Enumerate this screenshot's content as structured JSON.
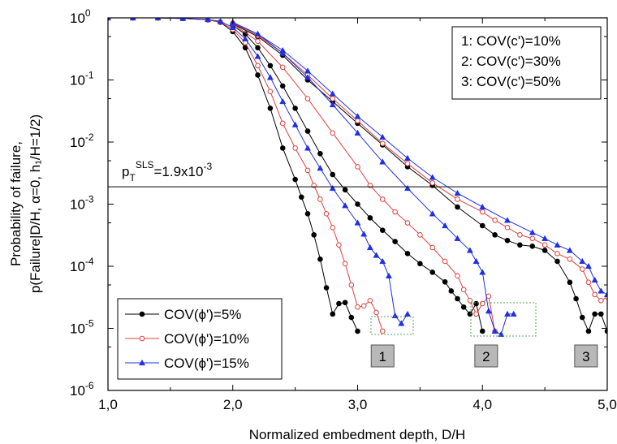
{
  "chart_data": {
    "type": "line",
    "xlabel": "Normalized embedment depth, D/H",
    "ylabel_line1": "Probability of failure,",
    "ylabel_line2": "p(Failure|D/H, α=0, h₁/H=1/2)",
    "x_ticks": [
      "1,0",
      "2,0",
      "3,0",
      "4,0",
      "5,0"
    ],
    "xlim": [
      1.0,
      5.0
    ],
    "y_scale": "log",
    "ylim": [
      1e-06,
      1
    ],
    "y_ticks": [
      {
        "base": "10",
        "exp": "0"
      },
      {
        "base": "10",
        "exp": "-1"
      },
      {
        "base": "10",
        "exp": "-2"
      },
      {
        "base": "10",
        "exp": "-3"
      },
      {
        "base": "10",
        "exp": "-4"
      },
      {
        "base": "10",
        "exp": "-5"
      },
      {
        "base": "10",
        "exp": "-6"
      }
    ],
    "threshold": {
      "value": 0.0019,
      "label_p": "p",
      "label_sub": "T",
      "label_sup": "SLS",
      "label_value": "=1.9x10",
      "label_exp": "-3"
    },
    "cov_c_legend": [
      "1: COV(c')=10%",
      "2: COV(c')=30%",
      "3: COV(c')=50%"
    ],
    "group_labels": [
      {
        "label": "1",
        "x": 3.2
      },
      {
        "label": "2",
        "x": 4.03
      },
      {
        "label": "3",
        "x": 4.83
      }
    ],
    "series": [
      {
        "name": "COV(ϕ')=5%",
        "color": "#000000",
        "marker": "circle-filled",
        "groups": [
          {
            "x": [
              1.0,
              1.2,
              1.4,
              1.6,
              1.8,
              1.9,
              2.0,
              2.1,
              2.2,
              2.3,
              2.4,
              2.5,
              2.55,
              2.6,
              2.65,
              2.7,
              2.75,
              2.8,
              2.85,
              2.9,
              2.95,
              3.0
            ],
            "y": [
              1.0,
              1.0,
              1.0,
              0.98,
              0.93,
              0.85,
              0.6,
              0.33,
              0.12,
              0.035,
              0.008,
              0.0025,
              0.0013,
              0.0007,
              0.00032,
              0.00013,
              4.5e-05,
              1.7e-05,
              2.5e-05,
              2.6e-05,
              1.5e-05,
              9e-06
            ]
          },
          {
            "x": [
              2.0,
              2.1,
              2.2,
              2.3,
              2.4,
              2.5,
              2.6,
              2.7,
              2.8,
              2.9,
              3.0,
              3.1,
              3.2,
              3.3,
              3.4,
              3.5,
              3.6,
              3.7,
              3.75,
              3.8,
              3.85,
              3.9,
              3.95,
              4.0
            ],
            "y": [
              0.75,
              0.55,
              0.33,
              0.17,
              0.08,
              0.035,
              0.015,
              0.0065,
              0.003,
              0.0017,
              0.001,
              0.0006,
              0.00038,
              0.00025,
              0.00016,
              0.00011,
              8e-05,
              5.6e-05,
              4e-05,
              3e-05,
              2.2e-05,
              1.7e-05,
              2.5e-05,
              9e-06
            ]
          },
          {
            "x": [
              2.0,
              2.2,
              2.4,
              2.6,
              2.8,
              3.0,
              3.2,
              3.4,
              3.6,
              3.8,
              4.0,
              4.1,
              4.2,
              4.3,
              4.4,
              4.5,
              4.6,
              4.7,
              4.75,
              4.8,
              4.85,
              4.9,
              4.95,
              5.0
            ],
            "y": [
              0.8,
              0.5,
              0.25,
              0.1,
              0.045,
              0.02,
              0.009,
              0.004,
              0.002,
              0.0009,
              0.00045,
              0.00032,
              0.00026,
              0.00022,
              0.00021,
              0.00018,
              0.00012,
              5.5e-05,
              3e-05,
              1.5e-05,
              9e-06,
              1.7e-05,
              1.7e-05,
              9e-06
            ]
          }
        ]
      },
      {
        "name": "COV(ϕ')=10%",
        "color": "#e0413c",
        "marker": "circle-open",
        "groups": [
          {
            "x": [
              1.0,
              1.2,
              1.4,
              1.6,
              1.8,
              1.9,
              2.0,
              2.1,
              2.2,
              2.3,
              2.4,
              2.5,
              2.6,
              2.65,
              2.7,
              2.75,
              2.8,
              2.85,
              2.9,
              2.95,
              3.0,
              3.05,
              3.1,
              3.15,
              3.2
            ],
            "y": [
              1.0,
              1.0,
              1.0,
              0.98,
              0.93,
              0.86,
              0.65,
              0.4,
              0.17,
              0.065,
              0.02,
              0.008,
              0.0035,
              0.002,
              0.0012,
              0.0007,
              0.00042,
              0.00022,
              0.00011,
              5e-05,
              2.2e-05,
              2.3e-05,
              2.8e-05,
              1.8e-05,
              9e-06
            ]
          },
          {
            "x": [
              2.0,
              2.2,
              2.4,
              2.6,
              2.8,
              3.0,
              3.1,
              3.2,
              3.3,
              3.4,
              3.5,
              3.6,
              3.7,
              3.8,
              3.85,
              3.9,
              3.95,
              4.0,
              4.05,
              4.1
            ],
            "y": [
              0.8,
              0.42,
              0.16,
              0.05,
              0.014,
              0.004,
              0.002,
              0.0012,
              0.00075,
              0.0005,
              0.00032,
              0.0002,
              0.00012,
              7e-05,
              4.2e-05,
              2.8e-05,
              1.7e-05,
              2.5e-05,
              3.3e-05,
              9e-06
            ]
          },
          {
            "x": [
              2.0,
              2.2,
              2.4,
              2.6,
              2.8,
              3.0,
              3.2,
              3.4,
              3.6,
              3.8,
              4.0,
              4.1,
              4.2,
              4.3,
              4.4,
              4.5,
              4.6,
              4.7,
              4.8,
              4.85,
              4.9,
              4.95,
              5.0
            ],
            "y": [
              0.82,
              0.52,
              0.27,
              0.12,
              0.05,
              0.022,
              0.0095,
              0.0045,
              0.0022,
              0.0012,
              0.00075,
              0.00055,
              0.00042,
              0.00032,
              0.00028,
              0.00022,
              0.00016,
              0.00013,
              9e-05,
              5.5e-05,
              3.5e-05,
              2.8e-05,
              3.2e-05
            ]
          }
        ]
      },
      {
        "name": "COV(ϕ')=15%",
        "color": "#2030e0",
        "marker": "triangle-filled",
        "groups": [
          {
            "x": [
              1.0,
              1.2,
              1.4,
              1.6,
              1.8,
              1.9,
              2.0,
              2.1,
              2.2,
              2.3,
              2.4,
              2.5,
              2.6,
              2.7,
              2.8,
              2.9,
              3.0,
              3.05,
              3.1,
              3.15,
              3.2,
              3.25,
              3.3,
              3.35,
              3.4
            ],
            "y": [
              1.0,
              1.0,
              1.0,
              0.98,
              0.94,
              0.88,
              0.7,
              0.46,
              0.24,
              0.11,
              0.045,
              0.019,
              0.008,
              0.0038,
              0.0018,
              0.00095,
              0.0005,
              0.00033,
              0.0002,
              0.00015,
              0.00012,
              7e-05,
              1.6e-05,
              1.2e-05,
              1.7e-05
            ]
          },
          {
            "x": [
              2.0,
              2.2,
              2.4,
              2.6,
              2.8,
              3.0,
              3.2,
              3.4,
              3.6,
              3.7,
              3.8,
              3.9,
              3.95,
              4.0,
              4.05,
              4.1,
              4.15,
              4.2,
              4.25
            ],
            "y": [
              0.85,
              0.55,
              0.27,
              0.11,
              0.04,
              0.014,
              0.0048,
              0.0018,
              0.0007,
              0.00045,
              0.00028,
              0.00018,
              0.00012,
              8e-05,
              1.9e-05,
              9e-06,
              8e-06,
              1.7e-05,
              1.7e-05
            ]
          },
          {
            "x": [
              2.0,
              2.2,
              2.4,
              2.6,
              2.8,
              3.0,
              3.2,
              3.4,
              3.6,
              3.8,
              4.0,
              4.2,
              4.4,
              4.5,
              4.6,
              4.7,
              4.8,
              4.85,
              4.9,
              4.95,
              5.0
            ],
            "y": [
              0.83,
              0.55,
              0.3,
              0.14,
              0.06,
              0.026,
              0.012,
              0.0055,
              0.0027,
              0.0015,
              0.0009,
              0.00055,
              0.00035,
              0.00028,
              0.00022,
              0.00018,
              0.00012,
              0.0001,
              6e-05,
              4e-05,
              3.5e-05
            ]
          }
        ]
      }
    ],
    "legend_position": "bottom-left"
  }
}
